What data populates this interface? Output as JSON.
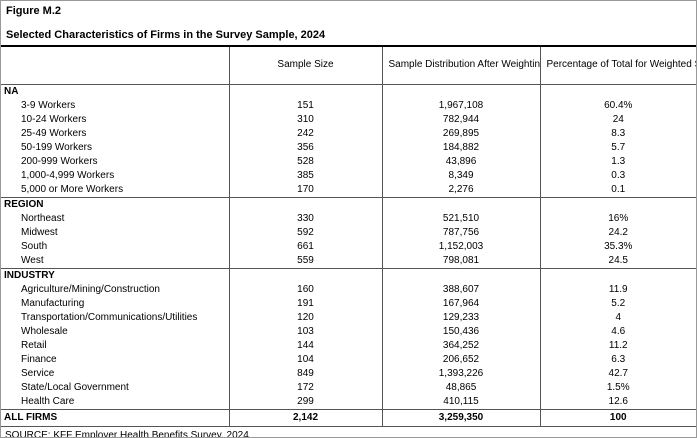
{
  "figure": {
    "label": "Figure M.2",
    "title": "Selected Characteristics of Firms in the Survey Sample, 2024"
  },
  "table": {
    "column_headers": [
      "Sample Size",
      "Sample Distribution After Weighting",
      "Percentage of Total for Weighted Sample"
    ],
    "sections": [
      {
        "header": "NA",
        "rows": [
          {
            "label": "3-9 Workers",
            "sample_size": "151",
            "distribution": "1,967,108",
            "percentage": "60.4%"
          },
          {
            "label": "10-24 Workers",
            "sample_size": "310",
            "distribution": "782,944",
            "percentage": "24"
          },
          {
            "label": "25-49 Workers",
            "sample_size": "242",
            "distribution": "269,895",
            "percentage": "8.3"
          },
          {
            "label": "50-199 Workers",
            "sample_size": "356",
            "distribution": "184,882",
            "percentage": "5.7"
          },
          {
            "label": "200-999 Workers",
            "sample_size": "528",
            "distribution": "43,896",
            "percentage": "1.3"
          },
          {
            "label": "1,000-4,999 Workers",
            "sample_size": "385",
            "distribution": "8,349",
            "percentage": "0.3"
          },
          {
            "label": "5,000 or More Workers",
            "sample_size": "170",
            "distribution": "2,276",
            "percentage": "0.1"
          }
        ]
      },
      {
        "header": "REGION",
        "rows": [
          {
            "label": "Northeast",
            "sample_size": "330",
            "distribution": "521,510",
            "percentage": "16%"
          },
          {
            "label": "Midwest",
            "sample_size": "592",
            "distribution": "787,756",
            "percentage": "24.2"
          },
          {
            "label": "South",
            "sample_size": "661",
            "distribution": "1,152,003",
            "percentage": "35.3%"
          },
          {
            "label": "West",
            "sample_size": "559",
            "distribution": "798,081",
            "percentage": "24.5"
          }
        ]
      },
      {
        "header": "INDUSTRY",
        "rows": [
          {
            "label": "Agriculture/Mining/Construction",
            "sample_size": "160",
            "distribution": "388,607",
            "percentage": "11.9"
          },
          {
            "label": "Manufacturing",
            "sample_size": "191",
            "distribution": "167,964",
            "percentage": "5.2"
          },
          {
            "label": "Transportation/Communications/Utilities",
            "sample_size": "120",
            "distribution": "129,233",
            "percentage": "4"
          },
          {
            "label": "Wholesale",
            "sample_size": "103",
            "distribution": "150,436",
            "percentage": "4.6"
          },
          {
            "label": "Retail",
            "sample_size": "144",
            "distribution": "364,252",
            "percentage": "11.2"
          },
          {
            "label": "Finance",
            "sample_size": "104",
            "distribution": "206,652",
            "percentage": "6.3"
          },
          {
            "label": "Service",
            "sample_size": "849",
            "distribution": "1,393,226",
            "percentage": "42.7"
          },
          {
            "label": "State/Local Government",
            "sample_size": "172",
            "distribution": "48,865",
            "percentage": "1.5%"
          },
          {
            "label": "Health Care",
            "sample_size": "299",
            "distribution": "410,115",
            "percentage": "12.6"
          }
        ]
      }
    ],
    "total_row": {
      "label": "ALL FIRMS",
      "sample_size": "2,142",
      "distribution": "3,259,350",
      "percentage": "100"
    }
  },
  "source": "SOURCE: KFF Employer Health Benefits Survey, 2024",
  "colors": {
    "background": "#ffffff",
    "text": "#000000",
    "grid_line": "#555555",
    "title_rule": "#000000",
    "outer_border": "#999999"
  }
}
